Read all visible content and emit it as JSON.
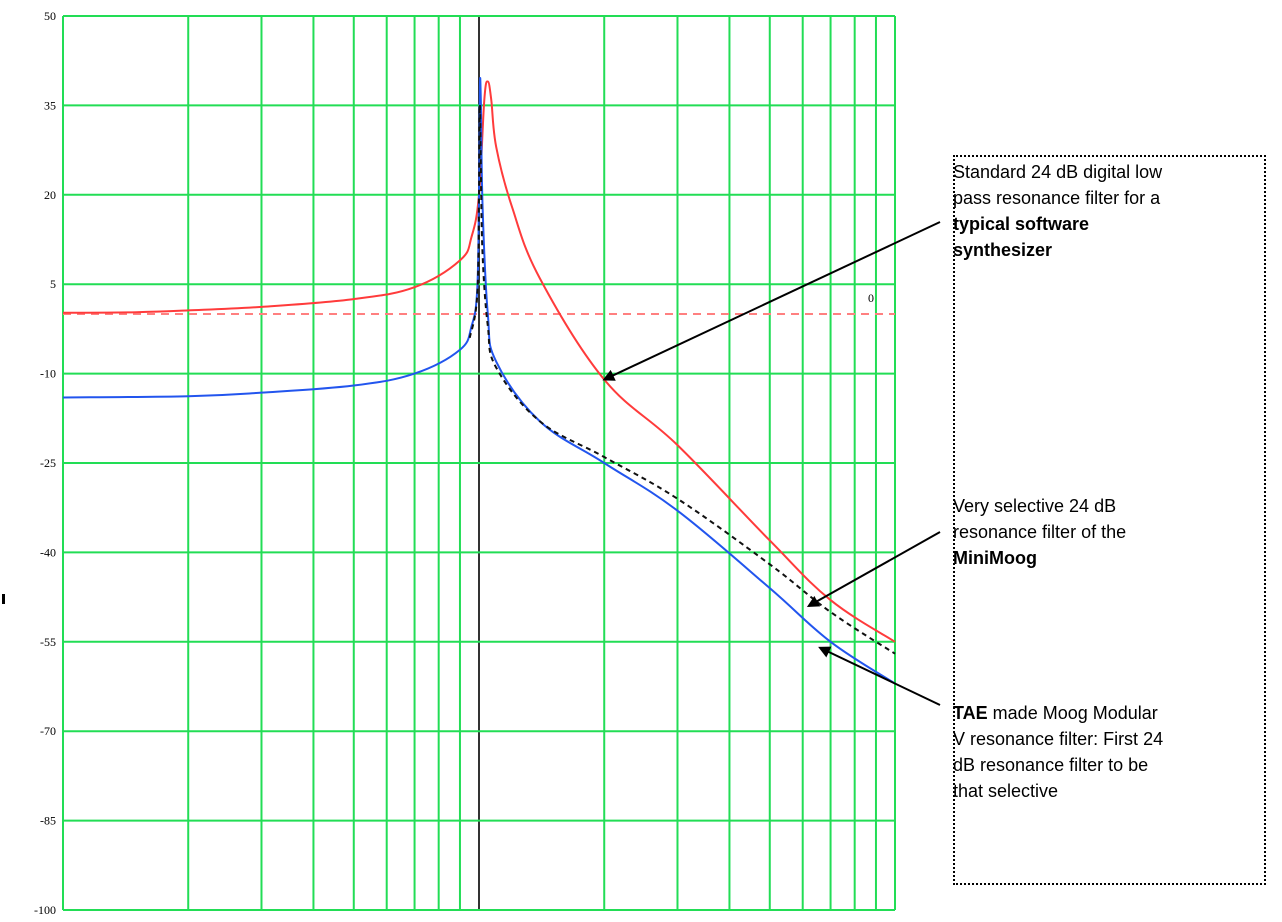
{
  "chart_data": {
    "type": "line",
    "title": "",
    "xlabel": "",
    "ylabel": "",
    "ylim": [
      -100,
      50
    ],
    "x_scale": "log",
    "x_decades": [
      1,
      2,
      3
    ],
    "grid": true,
    "yticks": [
      "50",
      "35",
      "20",
      "5",
      "-10",
      "-25",
      "-40",
      "-55",
      "-70",
      "-85",
      "-100"
    ],
    "reference_line": {
      "label": "0",
      "value": 0,
      "color": "#ff8080",
      "style": "dashed"
    },
    "colors": {
      "grid": "#22dd55",
      "red": "#ff3b3b",
      "blue": "#2255ee",
      "dashed": "#111111",
      "annotation": "#000000"
    },
    "series": [
      {
        "color": "#ff3b3b",
        "style": "solid",
        "points": [
          [
            1,
            0.2
          ],
          [
            1.5,
            0.3
          ],
          [
            2,
            0.6
          ],
          [
            3,
            1.2
          ],
          [
            5,
            2.5
          ],
          [
            7,
            4.5
          ],
          [
            9,
            9
          ],
          [
            9.6,
            13
          ],
          [
            10,
            20
          ],
          [
            10.3,
            36
          ],
          [
            10.5,
            39
          ],
          [
            10.7,
            36
          ],
          [
            11,
            28
          ],
          [
            12,
            18
          ],
          [
            14,
            6
          ],
          [
            20,
            -11
          ],
          [
            30,
            -22
          ],
          [
            50,
            -38
          ],
          [
            70,
            -48
          ],
          [
            100,
            -55
          ]
        ]
      },
      {
        "color": "#2255ee",
        "style": "solid",
        "points": [
          [
            1,
            -14
          ],
          [
            2,
            -13.8
          ],
          [
            3,
            -13.2
          ],
          [
            5,
            -12
          ],
          [
            7,
            -10
          ],
          [
            9,
            -6
          ],
          [
            9.6,
            -2
          ],
          [
            9.9,
            4
          ],
          [
            10,
            20
          ],
          [
            10.05,
            38
          ],
          [
            10.1,
            36
          ],
          [
            10.2,
            18
          ],
          [
            10.5,
            0
          ],
          [
            11,
            -8
          ],
          [
            14,
            -18
          ],
          [
            20,
            -25
          ],
          [
            30,
            -33
          ],
          [
            50,
            -46
          ],
          [
            70,
            -55
          ],
          [
            100,
            -62
          ]
        ]
      },
      {
        "color": "#111111",
        "style": "dashed",
        "points": [
          [
            9.5,
            -4
          ],
          [
            9.9,
            3
          ],
          [
            10,
            20
          ],
          [
            10.05,
            35
          ],
          [
            10.1,
            25
          ],
          [
            10.2,
            10
          ],
          [
            10.5,
            -2
          ],
          [
            11,
            -9
          ],
          [
            14,
            -18
          ],
          [
            20,
            -24
          ],
          [
            30,
            -31
          ],
          [
            50,
            -42
          ],
          [
            70,
            -50
          ],
          [
            100,
            -57
          ]
        ]
      }
    ],
    "annotations": [
      {
        "lines": [
          {
            "parts": [
              {
                "text": "Standard 24 dB digital low",
                "bold": false
              }
            ]
          },
          {
            "parts": [
              {
                "text": "pass resonance filter for a",
                "bold": false
              }
            ]
          },
          {
            "parts": [
              {
                "text": "typical software",
                "bold": true
              }
            ]
          },
          {
            "parts": [
              {
                "text": "synthesizer",
                "bold": true
              }
            ]
          }
        ],
        "arrow_to": [
          20,
          -11
        ]
      },
      {
        "lines": [
          {
            "parts": [
              {
                "text": "Very selective 24 dB",
                "bold": false
              }
            ]
          },
          {
            "parts": [
              {
                "text": "resonance filter of the",
                "bold": false
              }
            ]
          },
          {
            "parts": [
              {
                "text": "MiniMoog",
                "bold": true
              }
            ]
          }
        ],
        "arrow_to": [
          62,
          -49
        ]
      },
      {
        "lines": [
          {
            "parts": [
              {
                "text": "TAE",
                "bold": true
              },
              {
                "text": " made Moog Modular",
                "bold": false
              }
            ]
          },
          {
            "parts": [
              {
                "text": "V resonance filter: First 24",
                "bold": false
              }
            ]
          },
          {
            "parts": [
              {
                "text": "dB resonance filter to be",
                "bold": false
              }
            ]
          },
          {
            "parts": [
              {
                "text": "that selective",
                "bold": false
              }
            ]
          }
        ],
        "arrow_to": [
          66,
          -56
        ]
      }
    ]
  }
}
